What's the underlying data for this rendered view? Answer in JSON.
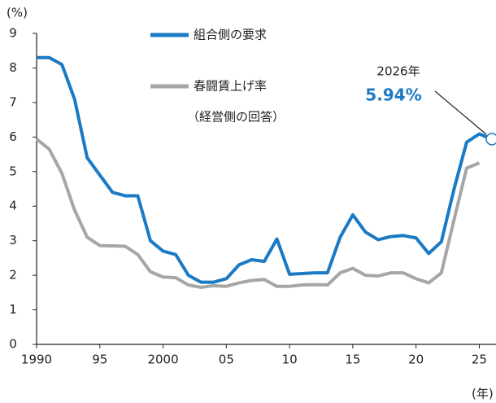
{
  "chart_data": {
    "type": "line",
    "y_unit": "(%)",
    "x_unit": "(年)",
    "x": [
      1990,
      1991,
      1992,
      1993,
      1994,
      1995,
      1996,
      1997,
      1998,
      1999,
      2000,
      2001,
      2002,
      2003,
      2004,
      2005,
      2006,
      2007,
      2008,
      2009,
      2010,
      2011,
      2012,
      2013,
      2014,
      2015,
      2016,
      2017,
      2018,
      2019,
      2020,
      2021,
      2022,
      2023,
      2024,
      2025,
      2026
    ],
    "series": [
      {
        "name": "組合側の要求",
        "color": "#1a7ac4",
        "values": [
          8.3,
          8.3,
          8.1,
          7.1,
          5.4,
          4.9,
          4.4,
          4.3,
          4.3,
          3.0,
          2.7,
          2.6,
          2.0,
          1.8,
          1.8,
          1.9,
          2.3,
          2.45,
          2.4,
          3.05,
          2.03,
          2.05,
          2.07,
          2.07,
          3.1,
          3.75,
          3.25,
          3.03,
          3.12,
          3.15,
          3.08,
          2.63,
          2.97,
          4.49,
          5.85,
          6.09,
          5.94
        ]
      },
      {
        "name": "春闘賃上げ率",
        "note": "（経営側の回答）",
        "color": "#a6a6a6",
        "values": [
          5.94,
          5.65,
          4.95,
          3.89,
          3.1,
          2.86,
          2.85,
          2.84,
          2.6,
          2.1,
          1.95,
          1.93,
          1.72,
          1.65,
          1.7,
          1.68,
          1.78,
          1.85,
          1.88,
          1.68,
          1.68,
          1.72,
          1.73,
          1.72,
          2.07,
          2.2,
          2.0,
          1.98,
          2.07,
          2.07,
          1.9,
          1.78,
          2.07,
          3.6,
          5.1,
          5.25,
          null
        ]
      }
    ],
    "annotations": [
      {
        "text": "2026年"
      },
      {
        "text": "5.94%"
      }
    ],
    "xlim": [
      1990,
      2026
    ],
    "xticks": [
      1990,
      {
        "value": 1995,
        "label": "95"
      },
      2000,
      {
        "value": 2005,
        "label": "05"
      },
      {
        "value": 2010,
        "label": "10"
      },
      {
        "value": 2015,
        "label": "15"
      },
      {
        "value": 2020,
        "label": "20"
      },
      {
        "value": 2025,
        "label": "25"
      }
    ],
    "ylim": [
      0,
      9
    ],
    "yticks": [
      0,
      1,
      2,
      3,
      4,
      5,
      6,
      7,
      8,
      9
    ],
    "grid": false
  }
}
